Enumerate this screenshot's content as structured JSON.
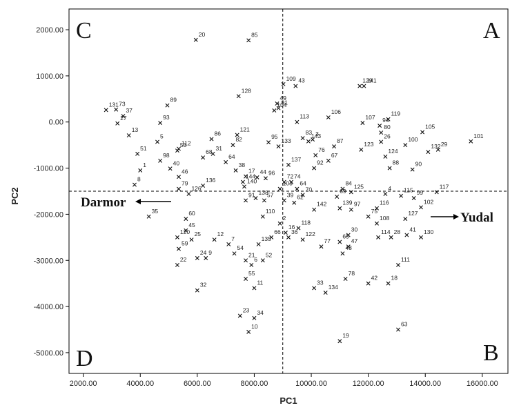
{
  "chart_data": {
    "type": "scatter",
    "xlabel": "PC1",
    "ylabel": "PC2",
    "xlim": [
      1500,
      16900
    ],
    "ylim": [
      -5450,
      2450
    ],
    "xticks": [
      "2000.00",
      "4000.00",
      "6000.00",
      "8000.00",
      "10000.00",
      "12000.00",
      "14000.00",
      "16000.00"
    ],
    "yticks": [
      "2000.00",
      "1000.00",
      "0.00",
      "-1000.00",
      "-2000.00",
      "-3000.00",
      "-4000.00",
      "-5000.00"
    ],
    "grid": false,
    "reference_lines": {
      "x": 9000,
      "y": -1500
    },
    "quadrants": [
      "A",
      "B",
      "C",
      "D"
    ],
    "annotations": [
      {
        "text": "Darmor",
        "arrow": "left"
      },
      {
        "text": "Yudal",
        "arrow": "right"
      }
    ],
    "marker": "x",
    "points": [
      {
        "label": "20",
        "x": 5950,
        "y": 1780
      },
      {
        "label": "85",
        "x": 7800,
        "y": 1770
      },
      {
        "label": "109",
        "x": 9020,
        "y": 820
      },
      {
        "label": "128",
        "x": 7450,
        "y": 560
      },
      {
        "label": "49",
        "x": 8800,
        "y": 400
      },
      {
        "label": "43",
        "x": 9450,
        "y": 780
      },
      {
        "label": "141",
        "x": 11850,
        "y": 780
      },
      {
        "label": "129",
        "x": 11700,
        "y": 780
      },
      {
        "label": "131",
        "x": 2800,
        "y": 260
      },
      {
        "label": "73",
        "x": 3150,
        "y": 270
      },
      {
        "label": "37",
        "x": 3400,
        "y": 130
      },
      {
        "label": "27",
        "x": 3200,
        "y": -30
      },
      {
        "label": "13",
        "x": 3600,
        "y": -290
      },
      {
        "label": "89",
        "x": 4950,
        "y": 360
      },
      {
        "label": "93",
        "x": 4700,
        "y": -20
      },
      {
        "label": "104",
        "x": 8700,
        "y": 250
      },
      {
        "label": "91",
        "x": 8850,
        "y": 300
      },
      {
        "label": "113",
        "x": 9500,
        "y": 0
      },
      {
        "label": "106",
        "x": 10600,
        "y": 100
      },
      {
        "label": "107",
        "x": 11800,
        "y": -20
      },
      {
        "label": "94",
        "x": 12400,
        "y": -80
      },
      {
        "label": "119",
        "x": 12700,
        "y": 60
      },
      {
        "label": "80",
        "x": 12450,
        "y": -230
      },
      {
        "label": "105",
        "x": 13900,
        "y": -220
      },
      {
        "label": "101",
        "x": 15600,
        "y": -420
      },
      {
        "label": "83",
        "x": 9700,
        "y": -350
      },
      {
        "label": "143",
        "x": 9900,
        "y": -420
      },
      {
        "label": "51",
        "x": 3900,
        "y": -690
      },
      {
        "label": "5",
        "x": 4600,
        "y": -430
      },
      {
        "label": "53",
        "x": 5300,
        "y": -620
      },
      {
        "label": "112",
        "x": 5350,
        "y": -580
      },
      {
        "label": "86",
        "x": 6500,
        "y": -370
      },
      {
        "label": "82",
        "x": 7250,
        "y": -500
      },
      {
        "label": "121",
        "x": 7400,
        "y": -280
      },
      {
        "label": "95",
        "x": 8500,
        "y": -440
      },
      {
        "label": "133",
        "x": 8850,
        "y": -530
      },
      {
        "label": "1",
        "x": 4000,
        "y": -1050
      },
      {
        "label": "98",
        "x": 4700,
        "y": -840
      },
      {
        "label": "40",
        "x": 5050,
        "y": -1010
      },
      {
        "label": "46",
        "x": 5350,
        "y": -1190
      },
      {
        "label": "68",
        "x": 6200,
        "y": -770
      },
      {
        "label": "31",
        "x": 6550,
        "y": -690
      },
      {
        "label": "64",
        "x": 7000,
        "y": -870
      },
      {
        "label": "38",
        "x": 7350,
        "y": -1050
      },
      {
        "label": "3",
        "x": 10050,
        "y": -380
      },
      {
        "label": "87",
        "x": 10800,
        "y": -530
      },
      {
        "label": "76",
        "x": 10150,
        "y": -720
      },
      {
        "label": "26",
        "x": 12450,
        "y": -430
      },
      {
        "label": "123",
        "x": 11750,
        "y": -600
      },
      {
        "label": "124",
        "x": 12600,
        "y": -750
      },
      {
        "label": "100",
        "x": 13300,
        "y": -500
      },
      {
        "label": "29",
        "x": 14450,
        "y": -600
      },
      {
        "label": "132",
        "x": 14100,
        "y": -650
      },
      {
        "label": "137",
        "x": 9200,
        "y": -930
      },
      {
        "label": "92",
        "x": 10100,
        "y": -1000
      },
      {
        "label": "67",
        "x": 10600,
        "y": -840
      },
      {
        "label": "88",
        "x": 12750,
        "y": -1000
      },
      {
        "label": "90",
        "x": 13550,
        "y": -1030
      },
      {
        "label": "144",
        "x": 7600,
        "y": -1300
      },
      {
        "label": "17",
        "x": 7700,
        "y": -1180
      },
      {
        "label": "44",
        "x": 8100,
        "y": -1200
      },
      {
        "label": "96",
        "x": 8400,
        "y": -1220
      },
      {
        "label": "72",
        "x": 9050,
        "y": -1300
      },
      {
        "label": "74",
        "x": 9300,
        "y": -1300
      },
      {
        "label": "84",
        "x": 11100,
        "y": -1450
      },
      {
        "label": "125",
        "x": 11400,
        "y": -1520
      },
      {
        "label": "69",
        "x": 10900,
        "y": -1620
      },
      {
        "label": "4",
        "x": 12600,
        "y": -1560
      },
      {
        "label": "115",
        "x": 13150,
        "y": -1600
      },
      {
        "label": "99",
        "x": 13600,
        "y": -1650
      },
      {
        "label": "117",
        "x": 14400,
        "y": -1520
      },
      {
        "label": "8",
        "x": 3800,
        "y": -1360
      },
      {
        "label": "79",
        "x": 5350,
        "y": -1450
      },
      {
        "label": "126",
        "x": 5700,
        "y": -1560
      },
      {
        "label": "136",
        "x": 6200,
        "y": -1380
      },
      {
        "label": "140",
        "x": 7650,
        "y": -1400
      },
      {
        "label": "138",
        "x": 8050,
        "y": -1650
      },
      {
        "label": "57",
        "x": 8350,
        "y": -1700
      },
      {
        "label": "91",
        "x": 7700,
        "y": -1700
      },
      {
        "label": "103",
        "x": 8900,
        "y": -1450
      },
      {
        "label": "64",
        "x": 9500,
        "y": -1450
      },
      {
        "label": "70",
        "x": 9700,
        "y": -1580
      },
      {
        "label": "39",
        "x": 9050,
        "y": -1700
      },
      {
        "label": "62",
        "x": 9400,
        "y": -1750
      },
      {
        "label": "142",
        "x": 10100,
        "y": -1900
      },
      {
        "label": "116",
        "x": 12300,
        "y": -1870
      },
      {
        "label": "102",
        "x": 13850,
        "y": -1850
      },
      {
        "label": "97",
        "x": 11400,
        "y": -1900
      },
      {
        "label": "139",
        "x": 11000,
        "y": -1870
      },
      {
        "label": "35",
        "x": 4300,
        "y": -2050
      },
      {
        "label": "110",
        "x": 8300,
        "y": -2050
      },
      {
        "label": "2",
        "x": 8900,
        "y": -2200
      },
      {
        "label": "16",
        "x": 9100,
        "y": -2400
      },
      {
        "label": "118",
        "x": 9550,
        "y": -2300
      },
      {
        "label": "108",
        "x": 12300,
        "y": -2200
      },
      {
        "label": "75",
        "x": 12000,
        "y": -2050
      },
      {
        "label": "127",
        "x": 13300,
        "y": -2100
      },
      {
        "label": "60",
        "x": 5600,
        "y": -2100
      },
      {
        "label": "120",
        "x": 5300,
        "y": -2500
      },
      {
        "label": "45",
        "x": 5600,
        "y": -2350
      },
      {
        "label": "25",
        "x": 5800,
        "y": -2550
      },
      {
        "label": "12",
        "x": 6600,
        "y": -2550
      },
      {
        "label": "7",
        "x": 7100,
        "y": -2650
      },
      {
        "label": "54",
        "x": 7300,
        "y": -2850
      },
      {
        "label": "135",
        "x": 8150,
        "y": -2650
      },
      {
        "label": "66",
        "x": 8600,
        "y": -2500
      },
      {
        "label": "36",
        "x": 9200,
        "y": -2500
      },
      {
        "label": "122",
        "x": 9700,
        "y": -2550
      },
      {
        "label": "77",
        "x": 10350,
        "y": -2700
      },
      {
        "label": "30",
        "x": 11300,
        "y": -2450
      },
      {
        "label": "65",
        "x": 11000,
        "y": -2600
      },
      {
        "label": "47",
        "x": 11300,
        "y": -2700
      },
      {
        "label": "48",
        "x": 11100,
        "y": -2850
      },
      {
        "label": "114",
        "x": 12350,
        "y": -2500
      },
      {
        "label": "28",
        "x": 12800,
        "y": -2500
      },
      {
        "label": "41",
        "x": 13350,
        "y": -2450
      },
      {
        "label": "130",
        "x": 13850,
        "y": -2500
      },
      {
        "label": "59",
        "x": 5350,
        "y": -2750
      },
      {
        "label": "24",
        "x": 6000,
        "y": -2950
      },
      {
        "label": "9",
        "x": 6300,
        "y": -2950
      },
      {
        "label": "21",
        "x": 7700,
        "y": -3000
      },
      {
        "label": "6",
        "x": 7900,
        "y": -3100
      },
      {
        "label": "52",
        "x": 8300,
        "y": -3000
      },
      {
        "label": "22",
        "x": 5300,
        "y": -3100
      },
      {
        "label": "55",
        "x": 7700,
        "y": -3400
      },
      {
        "label": "11",
        "x": 8000,
        "y": -3600
      },
      {
        "label": "32",
        "x": 6000,
        "y": -3650
      },
      {
        "label": "78",
        "x": 11200,
        "y": -3400
      },
      {
        "label": "42",
        "x": 12000,
        "y": -3500
      },
      {
        "label": "18",
        "x": 12700,
        "y": -3500
      },
      {
        "label": "111",
        "x": 13050,
        "y": -3100
      },
      {
        "label": "33",
        "x": 10100,
        "y": -3600
      },
      {
        "label": "134",
        "x": 10500,
        "y": -3700
      },
      {
        "label": "23",
        "x": 7500,
        "y": -4200
      },
      {
        "label": "34",
        "x": 8000,
        "y": -4250
      },
      {
        "label": "10",
        "x": 7800,
        "y": -4550
      },
      {
        "label": "19",
        "x": 11000,
        "y": -4750
      },
      {
        "label": "63",
        "x": 13050,
        "y": -4500
      }
    ]
  }
}
